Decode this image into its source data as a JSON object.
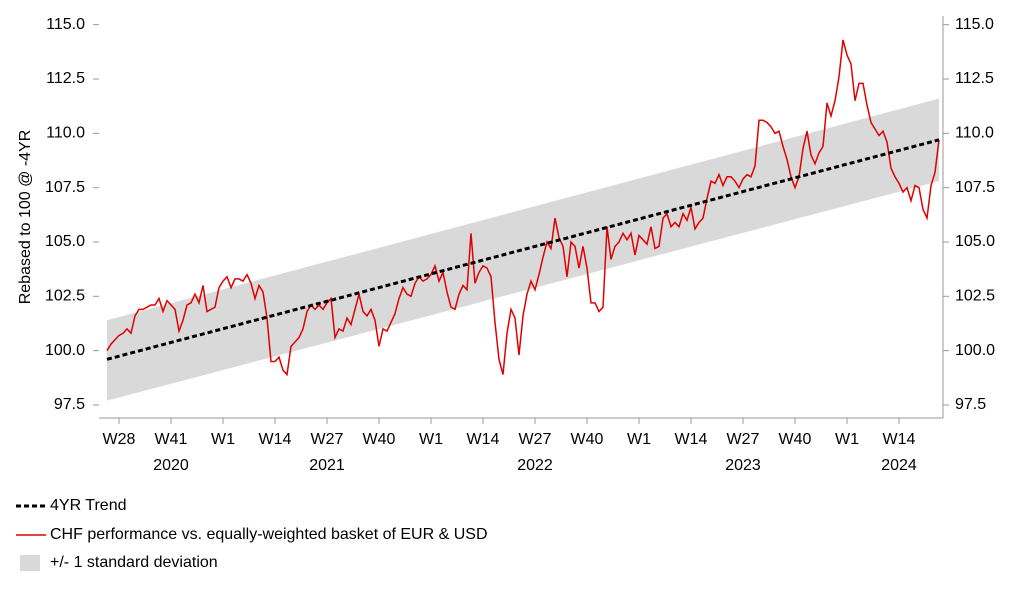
{
  "chart_data": {
    "type": "line",
    "y_label": "Rebased to 100 @ -4YR",
    "xlim": [
      -2,
      209
    ],
    "ylim": [
      96.9,
      115.4
    ],
    "yticks": [
      97.5,
      {
        "value": 100,
        "label": "100.0"
      },
      102.5,
      {
        "value": 105,
        "label": "105.0"
      },
      107.5,
      {
        "value": 110,
        "label": "110.0"
      },
      112.5,
      {
        "value": 115,
        "label": "115.0"
      }
    ],
    "xticks": [
      {
        "value": 3,
        "label": "W28"
      },
      {
        "value": 16,
        "label": "W41"
      },
      {
        "value": 29,
        "label": "W1"
      },
      {
        "value": 42,
        "label": "W14"
      },
      {
        "value": 55,
        "label": "W27"
      },
      {
        "value": 68,
        "label": "W40"
      },
      {
        "value": 81,
        "label": "W1"
      },
      {
        "value": 94,
        "label": "W14"
      },
      {
        "value": 107,
        "label": "W27"
      },
      {
        "value": 120,
        "label": "W40"
      },
      {
        "value": 133,
        "label": "W1"
      },
      {
        "value": 146,
        "label": "W14"
      },
      {
        "value": 159,
        "label": "W27"
      },
      {
        "value": 172,
        "label": "W40"
      },
      {
        "value": 185,
        "label": "W1"
      },
      {
        "value": 198,
        "label": "W14"
      }
    ],
    "year_labels": [
      {
        "value": 16,
        "label": "2020"
      },
      {
        "value": 55,
        "label": "2021"
      },
      {
        "value": 107,
        "label": "2022"
      },
      {
        "value": 159,
        "label": "2023"
      },
      {
        "value": 198,
        "label": "2024"
      }
    ],
    "band": {
      "name": "+/- 1 standard deviation",
      "color": "#d9d9d9",
      "x": [
        0,
        208
      ],
      "upper": [
        101.4,
        111.6
      ],
      "lower": [
        97.7,
        107.8
      ]
    },
    "series": [
      {
        "name": "4YR Trend",
        "color": "#000000",
        "dashed": true,
        "x": [
          0,
          208
        ],
        "values": [
          99.6,
          109.7
        ]
      },
      {
        "name": "CHF performance vs. equally-weighted basket of EUR & USD",
        "color": "#e00000",
        "dashed": false,
        "x": [
          0,
          1,
          2,
          3,
          4,
          5,
          6,
          7,
          8,
          9,
          10,
          11,
          12,
          13,
          14,
          15,
          16,
          17,
          18,
          19,
          20,
          21,
          22,
          23,
          24,
          25,
          26,
          27,
          28,
          29,
          30,
          31,
          32,
          33,
          34,
          35,
          36,
          37,
          38,
          39,
          40,
          41,
          42,
          43,
          44,
          45,
          46,
          47,
          48,
          49,
          50,
          51,
          52,
          53,
          54,
          55,
          56,
          57,
          58,
          59,
          60,
          61,
          62,
          63,
          64,
          65,
          66,
          67,
          68,
          69,
          70,
          71,
          72,
          73,
          74,
          75,
          76,
          77,
          78,
          79,
          80,
          81,
          82,
          83,
          84,
          85,
          86,
          87,
          88,
          89,
          90,
          91,
          92,
          93,
          94,
          95,
          96,
          97,
          98,
          99,
          100,
          101,
          102,
          103,
          104,
          105,
          106,
          107,
          108,
          109,
          110,
          111,
          112,
          113,
          114,
          115,
          116,
          117,
          118,
          119,
          120,
          121,
          122,
          123,
          124,
          125,
          126,
          127,
          128,
          129,
          130,
          131,
          132,
          133,
          134,
          135,
          136,
          137,
          138,
          139,
          140,
          141,
          142,
          143,
          144,
          145,
          146,
          147,
          148,
          149,
          150,
          151,
          152,
          153,
          154,
          155,
          156,
          157,
          158,
          159,
          160,
          161,
          162,
          163,
          164,
          165,
          166,
          167,
          168,
          169,
          170,
          171,
          172,
          173,
          174,
          175,
          176,
          177,
          178,
          179,
          180,
          181,
          182,
          183,
          184,
          185,
          186,
          187,
          188,
          189,
          190,
          191,
          192,
          193,
          194,
          195,
          196,
          197,
          198,
          199,
          200,
          201,
          202,
          203,
          204,
          205,
          206,
          207,
          208
        ],
        "values": [
          100.0,
          100.3,
          100.5,
          100.7,
          100.8,
          101.0,
          100.8,
          101.6,
          101.9,
          101.9,
          102.0,
          102.1,
          102.1,
          102.4,
          101.8,
          102.3,
          102.1,
          101.9,
          100.9,
          101.4,
          102.1,
          102.2,
          102.6,
          102.2,
          103.0,
          101.8,
          101.9,
          102.0,
          102.9,
          103.2,
          103.4,
          102.9,
          103.3,
          103.3,
          103.2,
          103.5,
          103.1,
          102.4,
          103.0,
          102.7,
          101.5,
          99.5,
          99.5,
          99.7,
          99.1,
          98.9,
          100.2,
          100.4,
          100.6,
          101.0,
          101.8,
          102.1,
          101.9,
          102.1,
          101.9,
          102.2,
          102.4,
          100.6,
          101.0,
          100.9,
          101.5,
          101.2,
          101.9,
          102.6,
          101.8,
          101.6,
          101.9,
          101.4,
          100.2,
          101.0,
          100.9,
          101.3,
          101.7,
          102.4,
          102.9,
          102.6,
          102.5,
          103.1,
          103.4,
          103.2,
          103.3,
          103.5,
          103.9,
          103.2,
          103.6,
          102.7,
          102.0,
          101.9,
          102.6,
          103.0,
          102.8,
          105.4,
          103.1,
          103.6,
          103.9,
          103.8,
          103.4,
          101.3,
          99.6,
          98.9,
          100.8,
          101.9,
          101.5,
          99.8,
          101.6,
          102.6,
          103.2,
          102.8,
          103.5,
          104.3,
          105.0,
          104.7,
          106.1,
          105.2,
          104.8,
          103.4,
          105.0,
          104.8,
          103.8,
          104.8,
          103.8,
          102.2,
          102.2,
          101.8,
          102.0,
          105.7,
          104.2,
          104.8,
          105.0,
          105.4,
          105.1,
          105.4,
          104.4,
          105.3,
          105.1,
          104.9,
          105.7,
          104.7,
          104.8,
          106.1,
          106.3,
          105.7,
          105.9,
          105.7,
          106.3,
          106.0,
          106.6,
          105.6,
          105.9,
          106.1,
          107.0,
          107.8,
          107.7,
          108.1,
          107.6,
          108.0,
          108.0,
          107.8,
          107.5,
          107.9,
          108.1,
          108.0,
          108.5,
          110.6,
          110.6,
          110.5,
          110.3,
          110.0,
          110.1,
          109.4,
          108.8,
          108.0,
          107.5,
          108.0,
          109.3,
          110.1,
          109.0,
          108.6,
          109.1,
          109.4,
          111.4,
          110.8,
          111.5,
          112.6,
          114.3,
          113.6,
          113.2,
          111.5,
          112.3,
          112.3,
          111.3,
          110.5,
          110.2,
          109.9,
          110.1,
          109.6,
          108.4,
          108.0,
          107.7,
          107.3,
          107.5,
          106.9,
          107.6,
          107.5,
          106.5,
          106.1,
          107.6,
          108.2,
          109.7
        ]
      }
    ]
  }
}
